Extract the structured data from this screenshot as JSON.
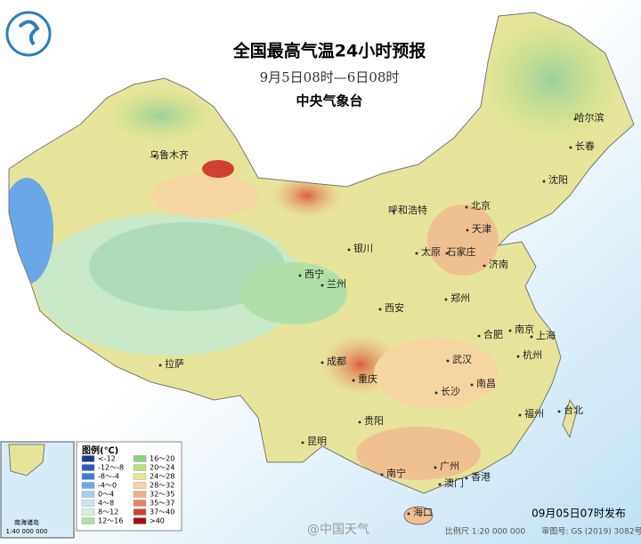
{
  "header": {
    "title": "全国最高气温24小时预报",
    "subtitle": "9月5日08时—6日08时",
    "issuer": "中央气象台"
  },
  "cities": [
    "乌鲁木齐",
    "哈尔滨",
    "长春",
    "沈阳",
    "呼和浩特",
    "北京",
    "天津",
    "银川",
    "太原",
    "石家庄",
    "济南",
    "西宁",
    "兰州",
    "郑州",
    "西安",
    "合肥",
    "南京",
    "上海",
    "成都",
    "武汉",
    "杭州",
    "拉萨",
    "重庆",
    "南昌",
    "长沙",
    "台北",
    "福州",
    "贵阳",
    "昆明",
    "南宁",
    "广州",
    "澳门",
    "香港",
    "海口"
  ],
  "legend": {
    "title": "图例(℃)",
    "items": [
      {
        "label": "<-12",
        "color": "#1a3a8c"
      },
      {
        "label": "-12～-8",
        "color": "#2a5bb8"
      },
      {
        "label": "-8～-4",
        "color": "#3d7fd6"
      },
      {
        "label": "-4～0",
        "color": "#6aa7e8"
      },
      {
        "label": "0～4",
        "color": "#9fd0f2"
      },
      {
        "label": "4～8",
        "color": "#c8e8f5"
      },
      {
        "label": "8～12",
        "color": "#d8f0e0"
      },
      {
        "label": "12～16",
        "color": "#b0e0a8"
      },
      {
        "label": "16～20",
        "color": "#8dd080"
      },
      {
        "label": "20～24",
        "color": "#b8e078"
      },
      {
        "label": "24～28",
        "color": "#e4e890"
      },
      {
        "label": "28～32",
        "color": "#f5d6a0"
      },
      {
        "label": "32～35",
        "color": "#f0b080"
      },
      {
        "label": "35～37",
        "color": "#e88060"
      },
      {
        "label": "37～40",
        "color": "#d04030"
      },
      {
        "label": ">40",
        "color": "#a01010"
      }
    ]
  },
  "inset": {
    "label": "南海诸岛",
    "scale": "1:40 000 000"
  },
  "footer": {
    "issued": "09月05日07时发布",
    "scale": "比例尺 1:20 000 000",
    "approval": "审图号: GS (2019) 3082号",
    "watermark": "@中国天气"
  }
}
